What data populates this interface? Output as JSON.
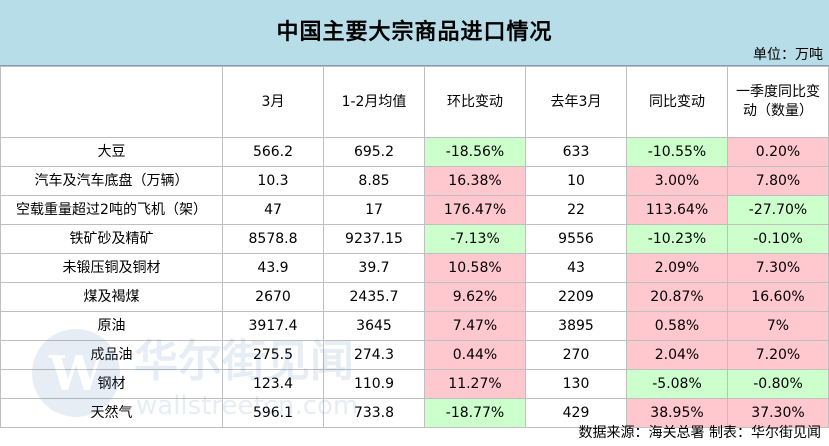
{
  "title": "中国主要大宗商品进口情况",
  "unit": "单位：万吨",
  "headers": [
    "",
    "3月",
    "1-2月均值",
    "环比变动",
    "去年3月",
    "同比变动",
    "一季度同比变动（数量）"
  ],
  "rows": [
    {
      "name": "大豆",
      "mar": "566.2",
      "avg": "695.2",
      "mom": "-18.56%",
      "lastyear": "633",
      "yoy": "-10.55%",
      "q1": "0.20%"
    },
    {
      "name": "汽车及汽车底盘（万辆）",
      "mar": "10.3",
      "avg": "8.85",
      "mom": "16.38%",
      "lastyear": "10",
      "yoy": "3.00%",
      "q1": "7.80%"
    },
    {
      "name": "空载重量超过2吨的飞机（架）",
      "mar": "47",
      "avg": "17",
      "mom": "176.47%",
      "lastyear": "22",
      "yoy": "113.64%",
      "q1": "-27.70%"
    },
    {
      "name": "铁矿砂及精矿",
      "mar": "8578.8",
      "avg": "9237.15",
      "mom": "-7.13%",
      "lastyear": "9556",
      "yoy": "-10.23%",
      "q1": "-0.10%"
    },
    {
      "name": "未锻压铜及铜材",
      "mar": "43.9",
      "avg": "39.7",
      "mom": "10.58%",
      "lastyear": "43",
      "yoy": "2.09%",
      "q1": "7.30%"
    },
    {
      "name": "煤及褐煤",
      "mar": "2670",
      "avg": "2435.7",
      "mom": "9.62%",
      "lastyear": "2209",
      "yoy": "20.87%",
      "q1": "16.60%"
    },
    {
      "name": "原油",
      "mar": "3917.4",
      "avg": "3645",
      "mom": "7.47%",
      "lastyear": "3895",
      "yoy": "0.58%",
      "q1": "7%"
    },
    {
      "name": "成品油",
      "mar": "275.5",
      "avg": "274.3",
      "mom": "0.44%",
      "lastyear": "270",
      "yoy": "2.04%",
      "q1": "7.20%"
    },
    {
      "name": "钢材",
      "mar": "123.4",
      "avg": "110.9",
      "mom": "11.27%",
      "lastyear": "130",
      "yoy": "-5.08%",
      "q1": "-0.80%"
    },
    {
      "name": "天然气",
      "mar": "596.1",
      "avg": "733.8",
      "mom": "-18.77%",
      "lastyear": "429",
      "yoy": "38.95%",
      "q1": "37.30%"
    }
  ],
  "footer": "数据来源：海关总署 制表：华尔街见闻",
  "watermark": {
    "brand": "华尔街见闻",
    "url": "wallstreetcn.com"
  },
  "colors": {
    "title_bg": "#b6dde8",
    "negative_bg": "#ccffcc",
    "positive_bg": "#ffc7ce"
  }
}
